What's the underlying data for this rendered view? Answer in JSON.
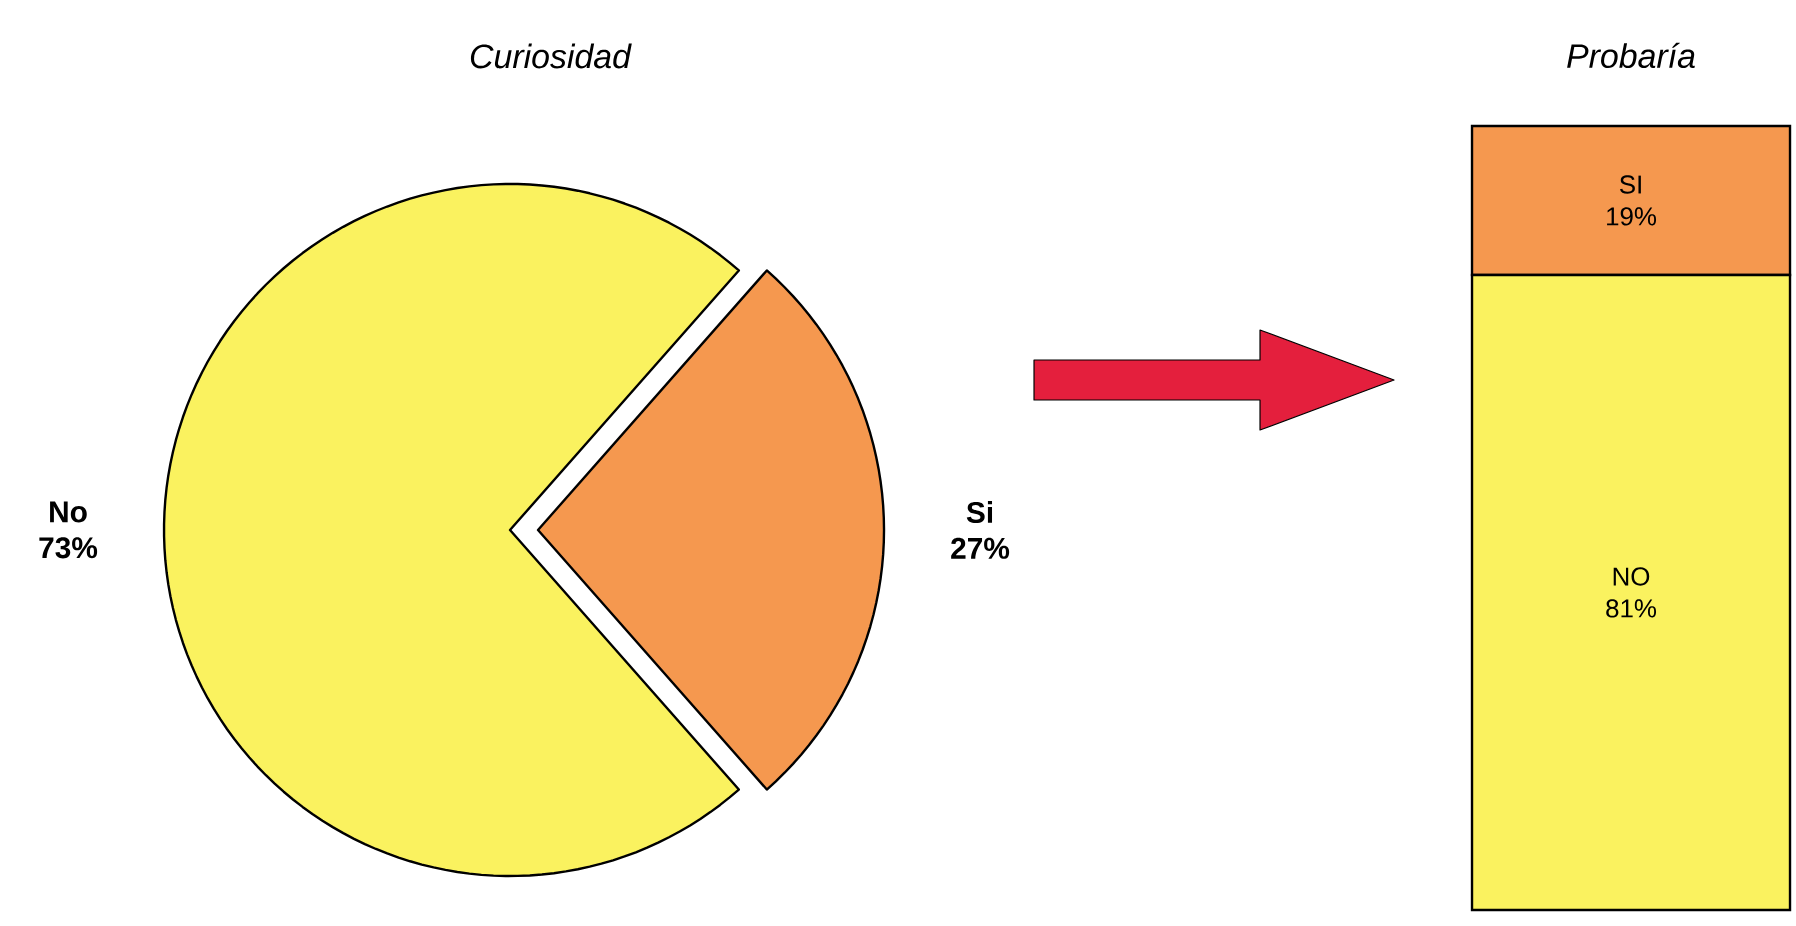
{
  "chart_data": [
    {
      "type": "pie",
      "title": "Curiosidad",
      "categories": [
        "No",
        "Si"
      ],
      "values": [
        73,
        27
      ],
      "value_labels": [
        "73%",
        "27%"
      ],
      "colors": [
        "#faf25f",
        "#f5984f"
      ]
    },
    {
      "type": "bar",
      "title": "Probaría",
      "stacked": true,
      "categories": [
        null
      ],
      "series": [
        {
          "name": "NO",
          "color": "#faf25f",
          "values": [
            81
          ],
          "value_labels": [
            "81%"
          ]
        },
        {
          "name": "SI",
          "color": "#f5984f",
          "values": [
            19
          ],
          "value_labels": [
            "19%"
          ]
        }
      ]
    }
  ]
}
